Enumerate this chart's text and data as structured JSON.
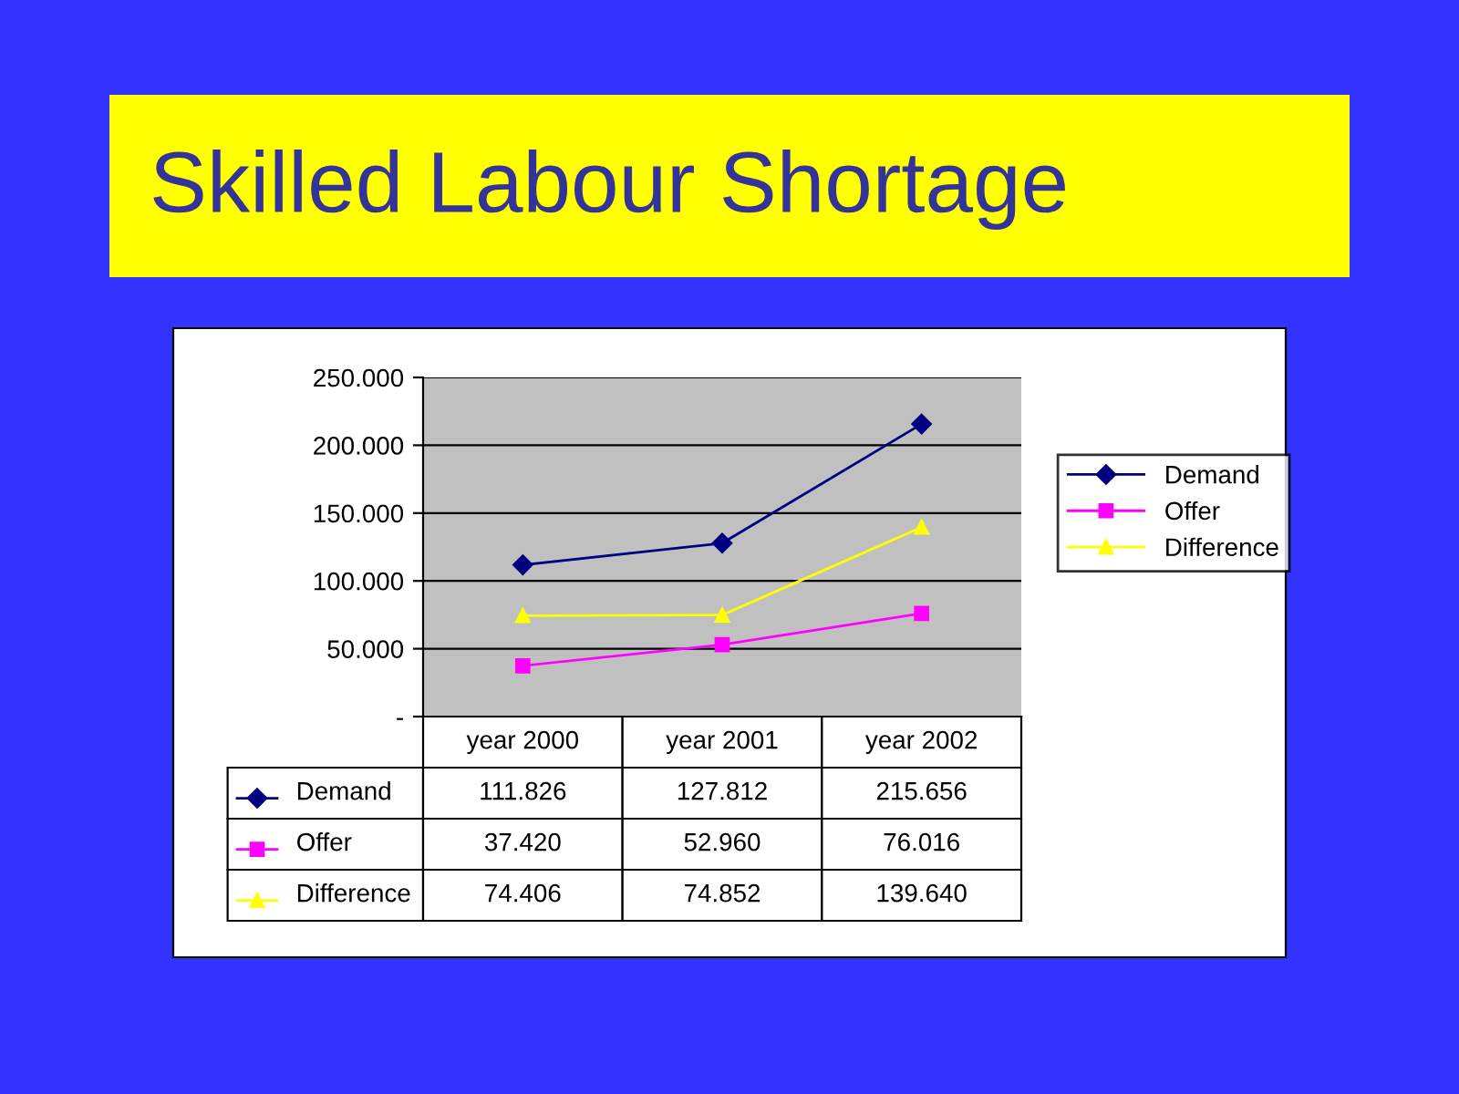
{
  "chart_data": {
    "type": "line",
    "title": "Skilled Labour Shortage",
    "categories": [
      "year 2000",
      "year 2001",
      "year 2002"
    ],
    "series": [
      {
        "name": "Demand",
        "color": "#000080",
        "marker": "diamond",
        "values": [
          111826,
          127812,
          215656
        ],
        "value_labels": [
          "111.826",
          "127.812",
          "215.656"
        ]
      },
      {
        "name": "Offer",
        "color": "#ff00ff",
        "marker": "square",
        "values": [
          37420,
          52960,
          76016
        ],
        "value_labels": [
          "37.420",
          "52.960",
          "76.016"
        ]
      },
      {
        "name": "Difference",
        "color": "#ffff00",
        "marker": "triangle",
        "values": [
          74406,
          74852,
          139640
        ],
        "value_labels": [
          "74.406",
          "74.852",
          "139.640"
        ]
      }
    ],
    "ylim": [
      0,
      250000
    ],
    "yticks": [
      {
        "value": 0,
        "label": "-"
      },
      {
        "value": 50000,
        "label": "50.000"
      },
      {
        "value": 100000,
        "label": "100.000"
      },
      {
        "value": 150000,
        "label": "150.000"
      },
      {
        "value": 200000,
        "label": "200.000"
      },
      {
        "value": 250000,
        "label": "250.000"
      }
    ],
    "grid": "y",
    "legend": "right",
    "line_style": "solid"
  }
}
